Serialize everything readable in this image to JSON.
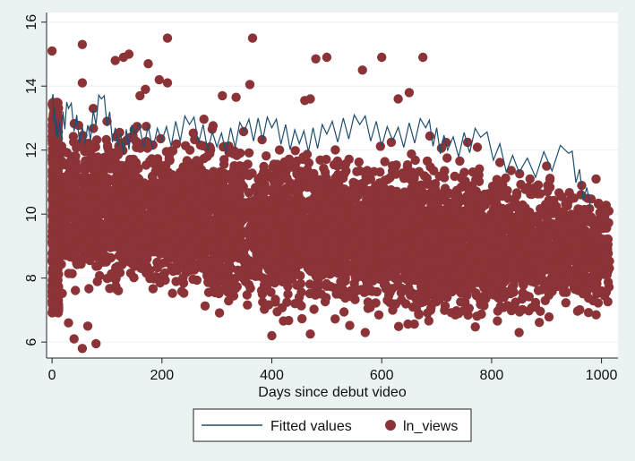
{
  "chart_data": {
    "type": "scatter",
    "xlabel": "Days since debut video",
    "ylabel": "",
    "xlim": [
      -10,
      1030
    ],
    "ylim": [
      5.5,
      16.3
    ],
    "xticks": [
      0,
      200,
      400,
      600,
      800,
      1000
    ],
    "yticks": [
      6,
      8,
      10,
      12,
      14,
      16
    ],
    "grid": true,
    "legend_position": "bottom",
    "colors": {
      "points": "#8b3336",
      "fitted": "#1e4f6e",
      "plot_bg": "#ffffff",
      "outer_bg": "#eaf2f3",
      "grid": "#eaf2f3"
    },
    "series": [
      {
        "name": "Fitted values",
        "kind": "line",
        "x": [
          0,
          10,
          30,
          60,
          90,
          120,
          150,
          200,
          250,
          300,
          350,
          400,
          450,
          500,
          560,
          620,
          680,
          720,
          780,
          850,
          940,
          980
        ],
        "y": [
          13.6,
          12.4,
          13.3,
          12.2,
          13.6,
          12.1,
          12.5,
          12.3,
          12.8,
          12.1,
          12.6,
          12.7,
          12.2,
          12.5,
          12.8,
          12.3,
          12.7,
          12.0,
          12.4,
          11.3,
          11.9,
          10.2
        ]
      },
      {
        "name": "ln_views",
        "kind": "scatter",
        "outliers": [
          [
            0,
            15.1
          ],
          [
            55,
            15.3
          ],
          [
            210,
            15.5
          ],
          [
            365,
            15.5
          ],
          [
            115,
            14.8
          ],
          [
            130,
            14.9
          ],
          [
            140,
            15.0
          ],
          [
            175,
            14.7
          ],
          [
            600,
            14.9
          ],
          [
            675,
            14.9
          ],
          [
            480,
            14.85
          ],
          [
            500,
            14.9
          ],
          [
            565,
            14.5
          ],
          [
            55,
            14.1
          ],
          [
            195,
            14.2
          ],
          [
            210,
            14.1
          ],
          [
            360,
            14.05
          ],
          [
            630,
            13.6
          ],
          [
            650,
            13.8
          ],
          [
            460,
            13.55
          ],
          [
            470,
            13.6
          ],
          [
            310,
            13.7
          ],
          [
            335,
            13.65
          ],
          [
            160,
            13.7
          ],
          [
            170,
            13.9
          ],
          [
            75,
            13.3
          ],
          [
            100,
            12.9
          ],
          [
            990,
            11.1
          ],
          [
            900,
            11.5
          ],
          [
            870,
            11.1
          ],
          [
            950,
            10.5
          ],
          [
            1000,
            9.6
          ],
          [
            1005,
            8.6
          ],
          [
            1010,
            8.1
          ],
          [
            1000,
            7.6
          ],
          [
            40,
            6.1
          ],
          [
            55,
            5.8
          ],
          [
            80,
            5.95
          ],
          [
            400,
            6.2
          ],
          [
            470,
            6.25
          ],
          [
            570,
            6.3
          ],
          [
            850,
            6.3
          ],
          [
            620,
            7.0
          ],
          [
            30,
            6.6
          ],
          [
            65,
            6.5
          ]
        ],
        "density_note_free": true
      }
    ]
  }
}
